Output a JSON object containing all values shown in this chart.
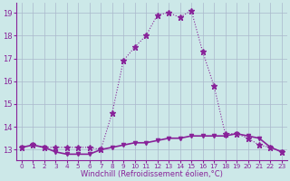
{
  "xlabel": "Windchill (Refroidissement éolien,°C)",
  "bg_color": "#cce8e8",
  "grid_color": "#aab8cc",
  "line_color": "#882299",
  "hours": [
    0,
    1,
    2,
    3,
    4,
    5,
    6,
    7,
    8,
    9,
    10,
    11,
    12,
    13,
    14,
    15,
    16,
    17,
    18,
    19,
    20,
    21,
    22,
    23
  ],
  "temp": [
    13.1,
    13.2,
    13.1,
    13.1,
    13.1,
    13.1,
    13.1,
    13.0,
    14.6,
    16.9,
    17.5,
    18.0,
    18.9,
    19.0,
    18.8,
    19.1,
    17.3,
    15.8,
    13.7,
    13.7,
    13.5,
    13.2,
    13.1,
    12.9
  ],
  "windchill": [
    13.1,
    13.2,
    13.1,
    12.9,
    12.8,
    12.8,
    12.8,
    13.0,
    13.1,
    13.2,
    13.3,
    13.3,
    13.4,
    13.5,
    13.5,
    13.6,
    13.6,
    13.6,
    13.6,
    13.7,
    13.6,
    13.5,
    13.1,
    12.9
  ],
  "ylim": [
    12.55,
    19.45
  ],
  "yticks": [
    13,
    14,
    15,
    16,
    17,
    18,
    19
  ],
  "xlim": [
    -0.5,
    23.5
  ],
  "xtick_fontsize": 5.2,
  "ytick_fontsize": 6.0,
  "xlabel_fontsize": 6.0
}
